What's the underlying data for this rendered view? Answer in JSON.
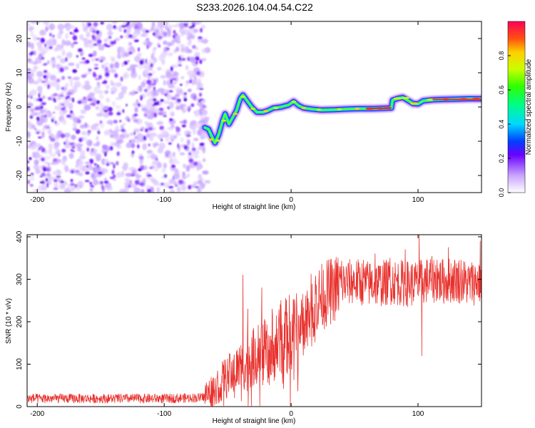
{
  "title": "S233.2026.104.04.54.C22",
  "chart_data": [
    {
      "type": "heatmap",
      "xlabel": "Height of straight line (km)",
      "ylabel": "Frequency (Hz)",
      "xlim": [
        -208,
        150
      ],
      "ylim": [
        -25,
        25
      ],
      "xticks": [
        -200,
        -100,
        0,
        100
      ],
      "yticks": [
        -20,
        -10,
        0,
        10,
        20
      ],
      "grid": false,
      "colorbar": {
        "label": "Normalized spectral amplitude",
        "range": [
          0.0,
          1.0
        ],
        "ticks": [
          0.0,
          0.2,
          0.4,
          0.6,
          0.8
        ]
      },
      "noise_region_x": [
        -208,
        -68
      ],
      "ridge": [
        [
          -68,
          -6
        ],
        [
          -65,
          -6.5
        ],
        [
          -62,
          -9
        ],
        [
          -60,
          -10.5
        ],
        [
          -57,
          -8
        ],
        [
          -54,
          -4
        ],
        [
          -52,
          -2
        ],
        [
          -49,
          -5
        ],
        [
          -46,
          -3
        ],
        [
          -43,
          -1
        ],
        [
          -40,
          2.5
        ],
        [
          -38,
          3.5
        ],
        [
          -35,
          2
        ],
        [
          -31,
          0
        ],
        [
          -27,
          -1.5
        ],
        [
          -22,
          -1.5
        ],
        [
          -18,
          -1
        ],
        [
          -14,
          -0.3
        ],
        [
          -8,
          0
        ],
        [
          -2,
          0.6
        ],
        [
          2,
          1.6
        ],
        [
          6,
          0.4
        ],
        [
          10,
          -0.3
        ],
        [
          16,
          -0.6
        ],
        [
          24,
          -0.9
        ],
        [
          34,
          -0.8
        ],
        [
          44,
          -0.6
        ],
        [
          54,
          -0.5
        ],
        [
          64,
          -0.5
        ],
        [
          72,
          -0.4
        ],
        [
          79,
          -0.3
        ],
        [
          80,
          2
        ],
        [
          84,
          2.5
        ],
        [
          88,
          2.8
        ],
        [
          92,
          1.9
        ],
        [
          96,
          1
        ],
        [
          100,
          0.9
        ],
        [
          104,
          1.8
        ],
        [
          112,
          2.1
        ],
        [
          120,
          2.2
        ],
        [
          130,
          2.3
        ],
        [
          140,
          2.4
        ],
        [
          150,
          2.4
        ]
      ]
    },
    {
      "type": "line",
      "xlabel": "Height of straight line (km)",
      "ylabel": "SNR (10 * v/v)",
      "xlim": [
        -208,
        150
      ],
      "ylim": [
        0,
        405
      ],
      "xticks": [
        -200,
        -100,
        0,
        100
      ],
      "yticks": [
        0,
        100,
        200,
        300,
        400
      ],
      "grid": false,
      "series": [
        {
          "name": "SNR",
          "color": "#e8302c",
          "envelope": [
            [
              -208,
              18
            ],
            [
              -100,
              18
            ],
            [
              -70,
              20
            ],
            [
              -60,
              45
            ],
            [
              -50,
              70
            ],
            [
              -40,
              95
            ],
            [
              -30,
              115
            ],
            [
              -20,
              130
            ],
            [
              -10,
              150
            ],
            [
              0,
              175
            ],
            [
              10,
              210
            ],
            [
              20,
              250
            ],
            [
              30,
              270
            ],
            [
              40,
              290
            ],
            [
              50,
              295
            ],
            [
              60,
              290
            ],
            [
              70,
              290
            ],
            [
              80,
              295
            ],
            [
              90,
              290
            ],
            [
              100,
              290
            ],
            [
              110,
              300
            ],
            [
              120,
              295
            ],
            [
              130,
              300
            ],
            [
              140,
              290
            ],
            [
              150,
              298
            ]
          ],
          "spikes": [
            [
              -38,
              310
            ],
            [
              -34,
              230
            ],
            [
              -23,
              280
            ],
            [
              -15,
              230
            ],
            [
              -8,
              250
            ],
            [
              -4,
              215
            ],
            [
              33,
              310
            ],
            [
              57,
              345
            ],
            [
              66,
              360
            ],
            [
              78,
              350
            ],
            [
              90,
              370
            ],
            [
              101,
              405
            ],
            [
              103,
              120
            ],
            [
              115,
              345
            ],
            [
              124,
              375
            ],
            [
              134,
              345
            ],
            [
              143,
              330
            ],
            [
              149,
              390
            ]
          ]
        }
      ]
    }
  ]
}
